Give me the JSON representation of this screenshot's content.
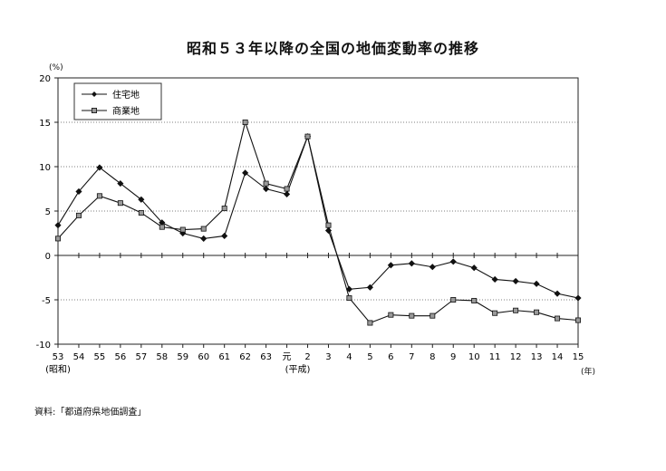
{
  "title": "昭和５３年以降の全国の地価変動率の推移",
  "y_unit": "(%)",
  "x_unit": "(年)",
  "source": "資料:「都道府県地価調査」",
  "era_labels": {
    "showa": "(昭和)",
    "heisei": "(平成)"
  },
  "chart_data": {
    "type": "line",
    "categories": [
      "53",
      "54",
      "55",
      "56",
      "57",
      "58",
      "59",
      "60",
      "61",
      "62",
      "63",
      "元",
      "2",
      "3",
      "4",
      "5",
      "6",
      "7",
      "8",
      "9",
      "10",
      "11",
      "12",
      "13",
      "14",
      "15"
    ],
    "series": [
      {
        "name": "住宅地",
        "color": "#111111",
        "marker": "diamond",
        "values": [
          3.4,
          7.2,
          9.9,
          8.1,
          6.3,
          3.7,
          2.5,
          1.9,
          2.2,
          9.3,
          7.5,
          6.9,
          13.4,
          2.8,
          -3.8,
          -3.6,
          -1.1,
          -0.9,
          -1.3,
          -0.7,
          -1.4,
          -2.7,
          -2.9,
          -3.2,
          -4.3,
          -4.8
        ]
      },
      {
        "name": "商業地",
        "color": "#111111",
        "marker": "square",
        "values": [
          1.9,
          4.5,
          6.7,
          5.9,
          4.8,
          3.2,
          2.9,
          3.0,
          5.3,
          15.0,
          8.1,
          7.5,
          13.4,
          3.4,
          -4.8,
          -7.6,
          -6.7,
          -6.8,
          -6.8,
          -5.0,
          -5.1,
          -6.5,
          -6.2,
          -6.4,
          -7.1,
          -7.3
        ]
      }
    ],
    "ylim": [
      -10,
      20
    ],
    "yticks": [
      20,
      15,
      10,
      5,
      0,
      -5,
      -10
    ],
    "grid": true,
    "legend": "top-left"
  }
}
